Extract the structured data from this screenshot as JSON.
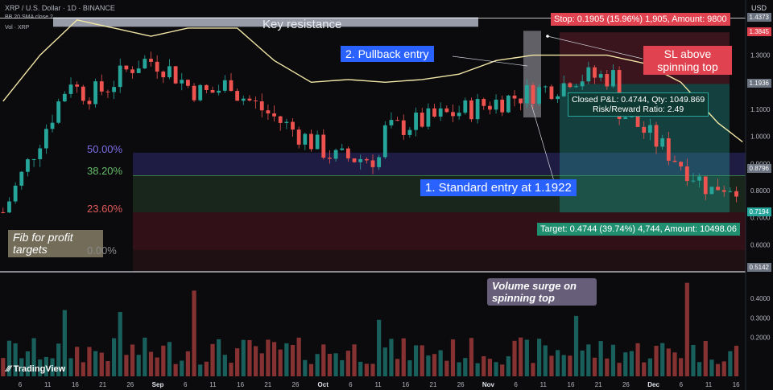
{
  "header": {
    "symbol_line": "XRP / U.S. Dollar · 1D · BINANCE",
    "indicator_line": "BB 20 SMA close 2",
    "volume_line": "Vol · XRP"
  },
  "currency": "USD",
  "annotations": {
    "key_resistance": "Key resistance",
    "pullback_entry": "2. Pullback entry",
    "standard_entry": "1. Standard entry at 1.1922",
    "sl_note": "SL above spinning top",
    "fib_note": "Fib for profit targets",
    "volume_note": "Volume surge on spinning top",
    "stop_label": "Stop: 0.1905 (15.96%) 1,905, Amount: 9800",
    "target_label": "Target: 0.4744 (39.74%) 4,744, Amount: 10498.06",
    "closed_pnl": "Closed P&L: 0.4744, Qty: 1049.869",
    "risk_reward": "Risk/Reward Ratio: 2.49",
    "brand": "TradingView"
  },
  "fib_levels": [
    {
      "label": "50.00%",
      "value": 0.94,
      "color": "#7c6ee6"
    },
    {
      "label": "38.20%",
      "value": 0.855,
      "color": "#66bb6a"
    },
    {
      "label": "23.60%",
      "value": 0.72,
      "color": "#e05a5a"
    },
    {
      "label": "0.00%",
      "value": 0.58,
      "color": "#8a8a8a"
    }
  ],
  "price_labels": [
    {
      "value": 1.4373,
      "text": "1.4373",
      "color": "#6b7280"
    },
    {
      "value": 1.3845,
      "text": "1.3845",
      "color": "#e0434f"
    },
    {
      "value": 1.1936,
      "text": "1.1936",
      "color": "#6b7280"
    },
    {
      "value": 0.8796,
      "text": "0.8796",
      "color": "#6b7280"
    },
    {
      "value": 0.7194,
      "text": "0.7194",
      "color": "#26a69a"
    },
    {
      "value": 0.5142,
      "text": "0.5142",
      "color": "#6b7280"
    }
  ],
  "chart_data": {
    "type": "candlestick",
    "price_axis_ticks": [
      1.3,
      1.2,
      1.1,
      1.0,
      0.9,
      0.8,
      0.7,
      0.6
    ],
    "price_range": [
      0.5,
      1.48
    ],
    "volume_axis_ticks": [
      "0.4000",
      "0.3000",
      "0.2000"
    ],
    "volume_range": [
      0,
      0.52
    ],
    "date_ticks": [
      "6",
      "11",
      "16",
      "21",
      "26",
      "Sep",
      "6",
      "11",
      "16",
      "21",
      "26",
      "Oct",
      "6",
      "11",
      "16",
      "21",
      "26",
      "Nov",
      "6",
      "11",
      "16",
      "21",
      "26",
      "Dec",
      "6",
      "11",
      "16"
    ],
    "bollinger_upper_key": [
      [
        0,
        1.13
      ],
      [
        6,
        1.3
      ],
      [
        12,
        1.43
      ],
      [
        18,
        1.4
      ],
      [
        24,
        1.37
      ],
      [
        30,
        1.4
      ],
      [
        38,
        1.4
      ],
      [
        44,
        1.28
      ],
      [
        50,
        1.2
      ],
      [
        56,
        1.21
      ],
      [
        62,
        1.2
      ],
      [
        68,
        1.21
      ],
      [
        74,
        1.23
      ],
      [
        80,
        1.28
      ],
      [
        86,
        1.3
      ],
      [
        92,
        1.3
      ],
      [
        98,
        1.3
      ],
      [
        104,
        1.27
      ],
      [
        110,
        1.2
      ],
      [
        116,
        1.05
      ],
      [
        120,
        0.98
      ]
    ]
  }
}
